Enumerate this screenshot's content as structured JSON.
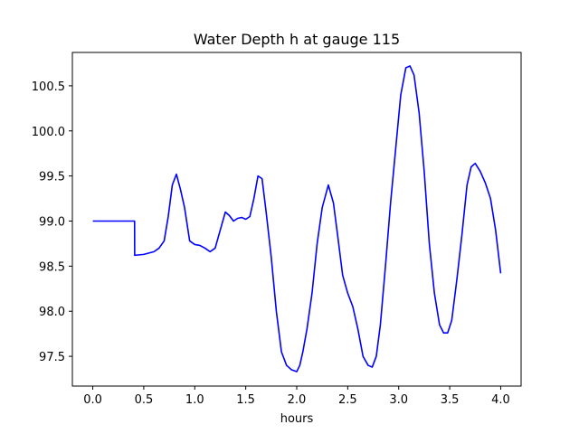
{
  "chart_data": {
    "type": "line",
    "title": "Water Depth h at gauge 115",
    "xlabel": "hours",
    "ylabel": "",
    "xlim": [
      -0.2,
      4.2
    ],
    "ylim": [
      97.17,
      100.87
    ],
    "xticks": [
      0.0,
      0.5,
      1.0,
      1.5,
      2.0,
      2.5,
      3.0,
      3.5,
      4.0
    ],
    "xtick_labels": [
      "0.0",
      "0.5",
      "1.0",
      "1.5",
      "2.0",
      "2.5",
      "3.0",
      "3.5",
      "4.0"
    ],
    "yticks": [
      97.5,
      98.0,
      98.5,
      99.0,
      99.5,
      100.0,
      100.5
    ],
    "ytick_labels": [
      "97.5",
      "98.0",
      "98.5",
      "99.0",
      "99.5",
      "100.0",
      "100.5"
    ],
    "grid": false,
    "color": "#0000ff",
    "series": [
      {
        "x": [
          0.0,
          0.1,
          0.2,
          0.3,
          0.41,
          0.411,
          0.5,
          0.6,
          0.65,
          0.7,
          0.74,
          0.78,
          0.82,
          0.86,
          0.9,
          0.95,
          1.0,
          1.05,
          1.1,
          1.15,
          1.2,
          1.25,
          1.3,
          1.34,
          1.38,
          1.42,
          1.46,
          1.5,
          1.54,
          1.58,
          1.62,
          1.66,
          1.7,
          1.75,
          1.8,
          1.85,
          1.9,
          1.95,
          2.0,
          2.03,
          2.06,
          2.1,
          2.15,
          2.2,
          2.25,
          2.31,
          2.36,
          2.4,
          2.45,
          2.5,
          2.55,
          2.6,
          2.65,
          2.7,
          2.74,
          2.78,
          2.82,
          2.87,
          2.92,
          2.97,
          3.02,
          3.07,
          3.11,
          3.15,
          3.2,
          3.25,
          3.3,
          3.35,
          3.4,
          3.44,
          3.48,
          3.52,
          3.57,
          3.62,
          3.67,
          3.71,
          3.75,
          3.8,
          3.85,
          3.9,
          3.95,
          4.0
        ],
        "y": [
          99.0,
          99.0,
          99.0,
          99.0,
          99.0,
          98.62,
          98.63,
          98.66,
          98.7,
          98.78,
          99.05,
          99.4,
          99.52,
          99.35,
          99.15,
          98.78,
          98.74,
          98.73,
          98.7,
          98.66,
          98.7,
          98.9,
          99.1,
          99.06,
          99.0,
          99.03,
          99.04,
          99.02,
          99.05,
          99.25,
          99.5,
          99.47,
          99.1,
          98.6,
          98.0,
          97.55,
          97.4,
          97.35,
          97.33,
          97.4,
          97.55,
          97.8,
          98.2,
          98.75,
          99.15,
          99.4,
          99.2,
          98.85,
          98.4,
          98.2,
          98.05,
          97.8,
          97.5,
          97.4,
          97.38,
          97.5,
          97.85,
          98.5,
          99.2,
          99.8,
          100.4,
          100.7,
          100.72,
          100.62,
          100.2,
          99.55,
          98.75,
          98.2,
          97.85,
          97.76,
          97.76,
          97.9,
          98.35,
          98.85,
          99.4,
          99.6,
          99.64,
          99.55,
          99.42,
          99.25,
          98.9,
          98.42
        ]
      }
    ]
  }
}
